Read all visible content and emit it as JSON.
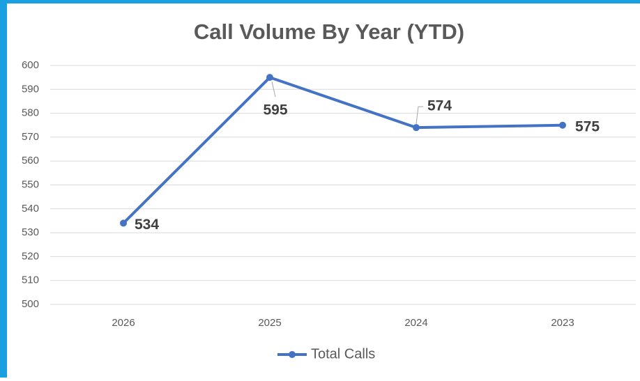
{
  "chart_data": {
    "type": "line",
    "title": "Call Volume By Year (YTD)",
    "categories": [
      "2026",
      "2025",
      "2024",
      "2023"
    ],
    "series": [
      {
        "name": "Total Calls",
        "color": "#4472c4",
        "values": [
          534,
          595,
          574,
          575
        ]
      }
    ],
    "ylim": [
      500,
      600
    ],
    "yticks": [
      500,
      510,
      520,
      530,
      540,
      550,
      560,
      570,
      580,
      590,
      600
    ],
    "grid": true,
    "legend": "bottom"
  }
}
